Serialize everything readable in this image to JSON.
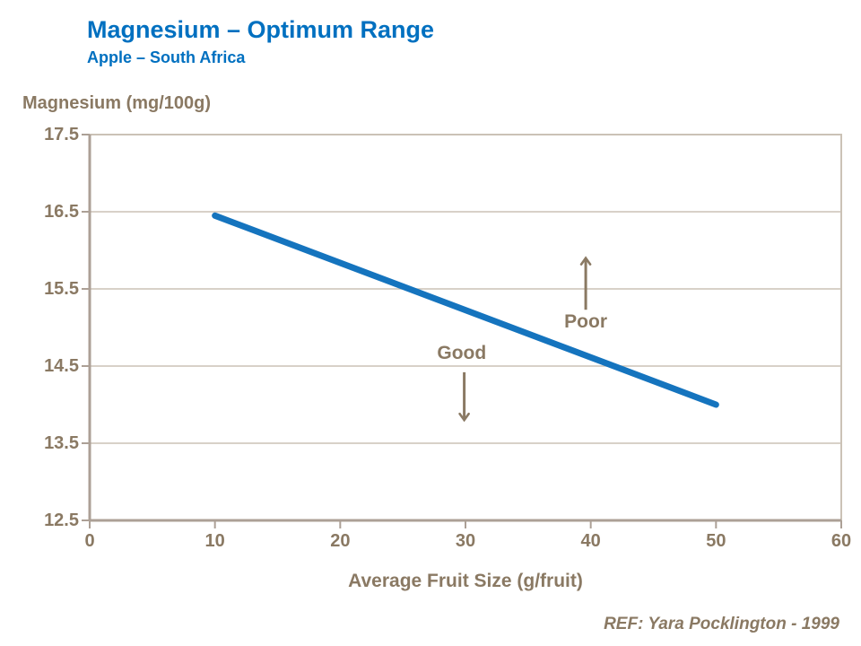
{
  "colors": {
    "title_blue": "#0070C0",
    "line_blue": "#1574BE",
    "text_brown": "#8A7963",
    "axis": "#ACA096",
    "grid": "#CBC2B6",
    "background": "#FFFFFF"
  },
  "chart_data": {
    "type": "line",
    "title": "Magnesium – Optimum Range",
    "subtitle": "Apple – South Africa",
    "ylabel": "Magnesium (mg/100g)",
    "xlabel": "Average Fruit Size (g/fruit)",
    "reference": "REF: Yara Pocklington - 1999",
    "xlim": [
      0,
      60
    ],
    "ylim": [
      12.5,
      17.5
    ],
    "grid": true,
    "legend": "none",
    "x_ticks": [
      {
        "v": 0,
        "label": "0"
      },
      {
        "v": 10,
        "label": "10"
      },
      {
        "v": 20,
        "label": "20"
      },
      {
        "v": 30,
        "label": "30"
      },
      {
        "v": 40,
        "label": "40"
      },
      {
        "v": 50,
        "label": "50"
      },
      {
        "v": 60,
        "label": "60"
      }
    ],
    "y_ticks": [
      {
        "v": 12.5,
        "label": "12.5"
      },
      {
        "v": 13.5,
        "label": "13.5"
      },
      {
        "v": 14.5,
        "label": "14.5"
      },
      {
        "v": 15.5,
        "label": "15.5"
      },
      {
        "v": 16.5,
        "label": "16.5"
      },
      {
        "v": 17.5,
        "label": "17.5"
      }
    ],
    "series": [
      {
        "name": "optimum-magnesium-line",
        "color": "#1574BE",
        "stroke_width": 7,
        "points": [
          {
            "x": 10,
            "y": 16.45
          },
          {
            "x": 50,
            "y": 14.0
          }
        ]
      }
    ],
    "annotations": [
      {
        "label": "Good",
        "region": "below-line",
        "label_x": 29.7,
        "label_y": 14.66,
        "arrow": {
          "x": 29.9,
          "from_y": 14.42,
          "to_y": 13.8,
          "direction": "down"
        }
      },
      {
        "label": "Poor",
        "region": "above-line",
        "label_x": 39.6,
        "label_y": 15.07,
        "arrow": {
          "x": 39.6,
          "from_y": 15.23,
          "to_y": 15.9,
          "direction": "up"
        }
      }
    ]
  }
}
